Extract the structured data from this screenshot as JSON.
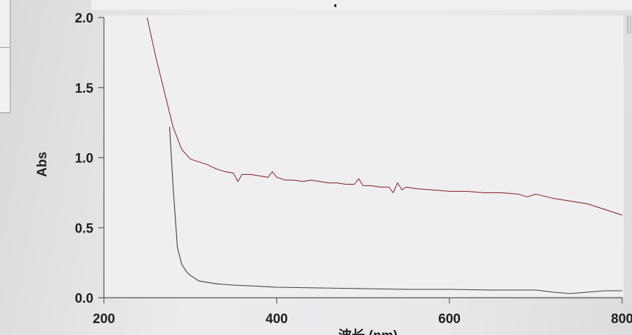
{
  "chart_data": {
    "type": "line",
    "title": "",
    "xlabel": "波长 (nm)",
    "ylabel": "Abs",
    "xlim": [
      200,
      800
    ],
    "ylim": [
      0.0,
      2.0
    ],
    "x_ticks": [
      200,
      400,
      600,
      800
    ],
    "x_tick_labels": [
      "200",
      "400",
      "600",
      "800"
    ],
    "y_ticks": [
      0.0,
      0.5,
      1.0,
      1.5,
      2.0
    ],
    "y_tick_labels": [
      "0.0",
      "0.5",
      "1.0",
      "1.5",
      "2.0"
    ],
    "grid": false,
    "series": [
      {
        "color": "#8a2a35",
        "x": [
          250,
          260,
          270,
          276,
          280,
          290,
          300,
          310,
          320,
          330,
          340,
          350,
          355,
          360,
          370,
          380,
          390,
          395,
          400,
          410,
          420,
          430,
          440,
          450,
          460,
          470,
          480,
          490,
          495,
          500,
          510,
          520,
          530,
          535,
          540,
          545,
          550,
          560,
          580,
          600,
          620,
          640,
          660,
          680,
          690,
          700,
          720,
          740,
          760,
          780,
          800
        ],
        "y": [
          2.0,
          1.72,
          1.47,
          1.32,
          1.22,
          1.06,
          0.99,
          0.97,
          0.95,
          0.92,
          0.9,
          0.89,
          0.83,
          0.88,
          0.88,
          0.87,
          0.86,
          0.9,
          0.86,
          0.84,
          0.84,
          0.83,
          0.84,
          0.83,
          0.82,
          0.82,
          0.81,
          0.81,
          0.85,
          0.8,
          0.8,
          0.79,
          0.79,
          0.75,
          0.82,
          0.77,
          0.79,
          0.78,
          0.77,
          0.76,
          0.76,
          0.75,
          0.75,
          0.74,
          0.72,
          0.74,
          0.71,
          0.69,
          0.67,
          0.63,
          0.59
        ]
      },
      {
        "color": "#3a3a3e",
        "x": [
          276,
          280,
          285,
          290,
          295,
          300,
          310,
          320,
          330,
          340,
          350,
          370,
          400,
          450,
          500,
          550,
          600,
          650,
          700,
          720,
          740,
          760,
          780,
          800
        ],
        "y": [
          1.22,
          0.8,
          0.36,
          0.24,
          0.19,
          0.16,
          0.12,
          0.11,
          0.1,
          0.095,
          0.09,
          0.085,
          0.075,
          0.07,
          0.065,
          0.06,
          0.06,
          0.055,
          0.055,
          0.04,
          0.03,
          0.04,
          0.05,
          0.05
        ]
      }
    ]
  }
}
